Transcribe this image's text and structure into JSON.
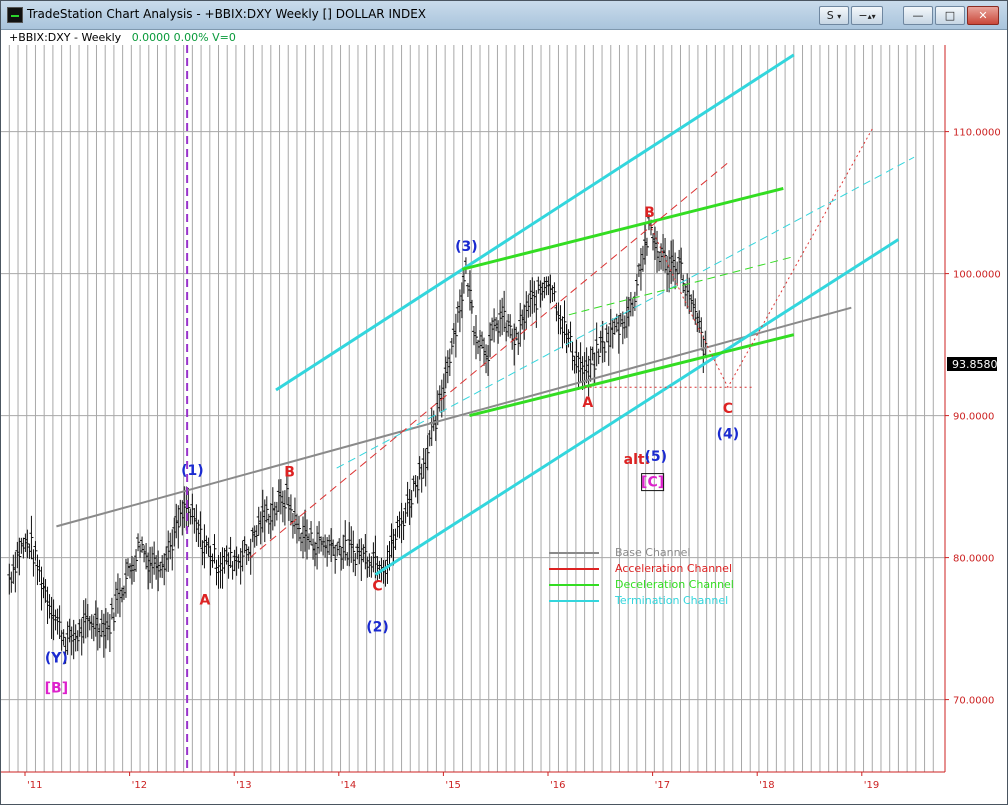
{
  "window": {
    "title": "TradeStation Chart Analysis - +BBIX:DXY Weekly [] DOLLAR INDEX",
    "btn_s": "S",
    "btn_min": "—",
    "btn_max": "□",
    "btn_close": "✕",
    "app_icon": "tradestation-icon",
    "ctl_icons": [
      "dropdown-arrow-icon",
      "minus-icon",
      "scroll-arrows-icon",
      "minimize-icon",
      "maximize-icon",
      "close-icon"
    ]
  },
  "status": {
    "symbol": "+BBIX:DXY - Weekly",
    "values": "0.0000  0.00%  V=0"
  },
  "chart_data": {
    "type": "line",
    "title": "",
    "series_desc": "DOLLAR INDEX weekly price bars",
    "x_ticks": [
      "'11",
      "'12",
      "'13",
      "'14",
      "'15",
      "'16",
      "'17",
      "'18",
      "'19"
    ],
    "x_tick_values": [
      2011.0,
      2012.0,
      2013.0,
      2014.0,
      2015.0,
      2016.0,
      2017.0,
      2018.0,
      2019.0
    ],
    "y_ticks": [
      "70.0000",
      "80.0000",
      "90.0000",
      "100.0000",
      "110.0000"
    ],
    "y_tick_values": [
      70,
      80,
      90,
      100,
      110
    ],
    "ylim": [
      65,
      117
    ],
    "xlim": [
      2010.8,
      2019.8
    ],
    "last_price": "93.8580",
    "last_price_value": 93.858,
    "price_path": [
      [
        2010.85,
        78.5
      ],
      [
        2010.95,
        80.5
      ],
      [
        2011.05,
        81.0
      ],
      [
        2011.15,
        78.5
      ],
      [
        2011.3,
        75.5
      ],
      [
        2011.4,
        74.0
      ],
      [
        2011.5,
        74.5
      ],
      [
        2011.65,
        75.5
      ],
      [
        2011.8,
        75.0
      ],
      [
        2011.9,
        77.5
      ],
      [
        2012.0,
        79.0
      ],
      [
        2012.1,
        81.0
      ],
      [
        2012.2,
        79.5
      ],
      [
        2012.35,
        80.0
      ],
      [
        2012.45,
        82.0
      ],
      [
        2012.55,
        83.5
      ],
      [
        2012.7,
        81.0
      ],
      [
        2012.85,
        79.5
      ],
      [
        2013.0,
        79.8
      ],
      [
        2013.15,
        80.5
      ],
      [
        2013.25,
        82.5
      ],
      [
        2013.4,
        83.5
      ],
      [
        2013.5,
        84.2
      ],
      [
        2013.6,
        82.0
      ],
      [
        2013.75,
        81.0
      ],
      [
        2013.9,
        80.8
      ],
      [
        2014.05,
        80.5
      ],
      [
        2014.2,
        80.2
      ],
      [
        2014.35,
        80.0
      ],
      [
        2014.45,
        79.5
      ],
      [
        2014.55,
        81.5
      ],
      [
        2014.65,
        83.5
      ],
      [
        2014.75,
        85.5
      ],
      [
        2014.85,
        87.5
      ],
      [
        2014.95,
        90.0
      ],
      [
        2015.05,
        94.0
      ],
      [
        2015.15,
        97.5
      ],
      [
        2015.22,
        100.2
      ],
      [
        2015.3,
        96.0
      ],
      [
        2015.42,
        94.5
      ],
      [
        2015.55,
        97.0
      ],
      [
        2015.7,
        95.0
      ],
      [
        2015.8,
        97.5
      ],
      [
        2015.92,
        98.5
      ],
      [
        2016.0,
        99.8
      ],
      [
        2016.08,
        98.0
      ],
      [
        2016.18,
        95.5
      ],
      [
        2016.3,
        93.5
      ],
      [
        2016.38,
        92.8
      ],
      [
        2016.48,
        94.5
      ],
      [
        2016.58,
        95.5
      ],
      [
        2016.7,
        96.5
      ],
      [
        2016.8,
        97.5
      ],
      [
        2016.88,
        100.5
      ],
      [
        2016.97,
        103.0
      ],
      [
        2017.05,
        101.5
      ],
      [
        2017.15,
        100.5
      ],
      [
        2017.25,
        100.8
      ],
      [
        2017.35,
        98.0
      ],
      [
        2017.45,
        96.0
      ],
      [
        2017.52,
        93.9
      ]
    ],
    "lines": [
      {
        "style": "solid",
        "color": "#8a8a8a",
        "width": 2,
        "pts": [
          [
            2011.3,
            82.2
          ],
          [
            2018.9,
            97.6
          ]
        ]
      },
      {
        "style": "solid",
        "color": "#33d6dd",
        "width": 3,
        "pts": [
          [
            2013.4,
            91.8
          ],
          [
            2018.35,
            115.4
          ]
        ]
      },
      {
        "style": "solid",
        "color": "#33d6dd",
        "width": 3,
        "pts": [
          [
            2014.35,
            78.8
          ],
          [
            2019.35,
            102.4
          ]
        ]
      },
      {
        "style": "dashed",
        "color": "#33d6dd",
        "width": 1,
        "pts": [
          [
            2013.98,
            86.3
          ],
          [
            2019.5,
            108.2
          ]
        ]
      },
      {
        "style": "solid",
        "color": "#33dd22",
        "width": 3,
        "pts": [
          [
            2015.18,
            100.3
          ],
          [
            2018.25,
            106.0
          ]
        ]
      },
      {
        "style": "solid",
        "color": "#33dd22",
        "width": 3,
        "pts": [
          [
            2015.25,
            90.0
          ],
          [
            2018.35,
            95.7
          ]
        ]
      },
      {
        "style": "dashed",
        "color": "#33dd22",
        "width": 1,
        "pts": [
          [
            2016.2,
            97.1
          ],
          [
            2018.35,
            101.2
          ]
        ]
      },
      {
        "style": "dashed",
        "color": "#dd3333",
        "width": 1,
        "pts": [
          [
            2013.15,
            80.0
          ],
          [
            2017.72,
            107.8
          ]
        ]
      },
      {
        "style": "dotted",
        "color": "#dd3333",
        "width": 1,
        "pts": [
          [
            2016.35,
            92.0
          ],
          [
            2017.95,
            92.0
          ]
        ]
      },
      {
        "style": "dotted",
        "color": "#dd3333",
        "width": 1,
        "pts": [
          [
            2016.97,
            103.5
          ],
          [
            2017.28,
            98.5
          ],
          [
            2017.72,
            92.0
          ],
          [
            2019.1,
            110.2
          ]
        ]
      },
      {
        "style": "dashed",
        "color": "#9933cc",
        "width": 2,
        "vertical_x": 2012.55
      }
    ],
    "labels": [
      {
        "text": "(Y)",
        "x": 2011.3,
        "y": 72.6,
        "color": "#1a2ad0"
      },
      {
        "text": "[B]",
        "x": 2011.3,
        "y": 70.5,
        "color": "#dd22cc"
      },
      {
        "text": "(1)",
        "x": 2012.6,
        "y": 85.8,
        "color": "#1a2ad0"
      },
      {
        "text": "A",
        "x": 2012.72,
        "y": 76.7,
        "color": "#dd2222"
      },
      {
        "text": "B",
        "x": 2013.53,
        "y": 85.7,
        "color": "#dd2222"
      },
      {
        "text": "C",
        "x": 2014.37,
        "y": 77.7,
        "color": "#dd2222"
      },
      {
        "text": "(2)",
        "x": 2014.37,
        "y": 74.8,
        "color": "#1a2ad0"
      },
      {
        "text": "(3)",
        "x": 2015.22,
        "y": 101.6,
        "color": "#1a2ad0"
      },
      {
        "text": "A",
        "x": 2016.38,
        "y": 90.6,
        "color": "#dd2222"
      },
      {
        "text": "B",
        "x": 2016.97,
        "y": 104.0,
        "color": "#dd2222"
      },
      {
        "text": "C",
        "x": 2017.72,
        "y": 90.2,
        "color": "#dd2222"
      },
      {
        "text": "(4)",
        "x": 2017.72,
        "y": 88.4,
        "color": "#1a2ad0"
      },
      {
        "text": "alt:",
        "x": 2016.85,
        "y": 86.6,
        "color": "#dd2222"
      },
      {
        "text": "(5)",
        "x": 2017.03,
        "y": 86.8,
        "color": "#1a2ad0"
      },
      {
        "text": "[C]",
        "x": 2017.0,
        "y": 85.0,
        "color": "#dd22cc"
      }
    ],
    "legend": [
      {
        "name": "Base Channel",
        "color": "#8a8a8a"
      },
      {
        "name": "Acceleration Channel",
        "color": "#dd2222"
      },
      {
        "name": "Deceleration Channel",
        "color": "#33dd22"
      },
      {
        "name": "Termination Channel",
        "color": "#33d6dd"
      }
    ],
    "legend_placement": "center-right",
    "grid": true
  }
}
